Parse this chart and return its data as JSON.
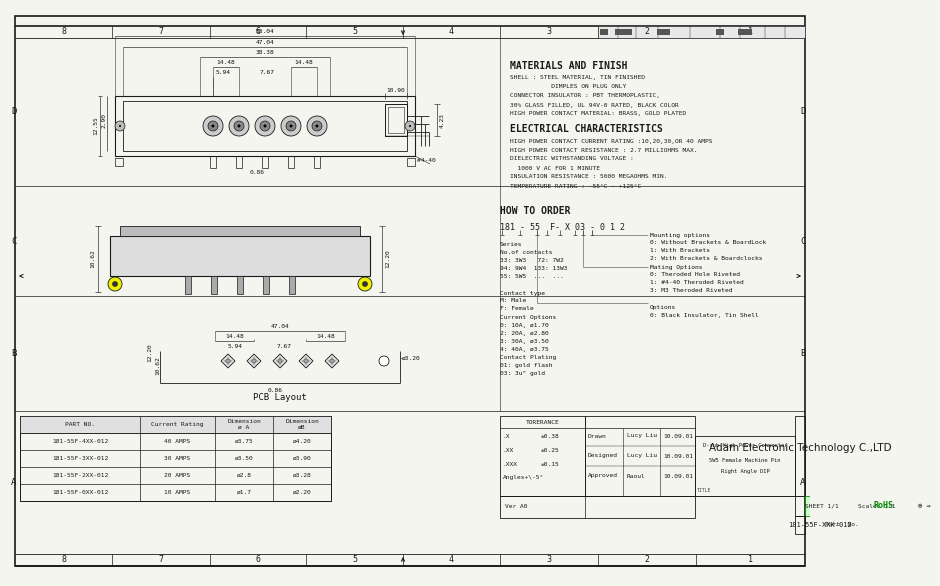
{
  "bg_color": "#f5f5f0",
  "line_color": "#1a1a1a",
  "company": "Adam Electronic Technology C.,LTD",
  "part_no": "181-55F-XXX-012",
  "rohs_color": "#008800",
  "materials_title": "MATERIALS AND FINISH",
  "materials_lines": [
    "SHELL : STEEL MATERIAL, TIN FINISHED",
    "           DIMPLES ON PLUG ONLY",
    "CONNECTOR INSULATOR : PBT THERMOPLASTIC,",
    "30% GLASS FILLED, UL 94V-0 RATED, BLACK COLOR",
    "HIGH POWER CONTACT MATERIAL: BRASS, GOLD PLATED"
  ],
  "electrical_title": "ELECTRICAL CHARACTERISTICS",
  "electrical_lines": [
    "HIGH POWER CONTACT CURRENT RATING :10,20,30,OR 40 AMPS",
    "HIGH POWER CONTACT RESISTANCE : 2.7 MILLIOHMS MAX.",
    "DIELECTRIC WITHSTANDING VOLTAGE :",
    "  1000 V AC FOR 1 MINUTE",
    "INSULATION RESISTANCE : 5000 MEGAOHMS MIN.",
    "TEMPERATURE RATING : -55°C ~ +125°C"
  ],
  "how_to_order": "HOW TO ORDER",
  "order_code": "181 - 55  F- X 03 - 0 1 2",
  "left_order_lines": [
    "Series",
    "No.of contacts",
    "33: 3W3   72: 7W2",
    "94: 9W4  133: 13W3",
    "55: 5W5  ...  ...",
    "",
    "Contact type",
    "M: Male",
    "F: Female",
    "Current Options",
    "0: 10A, ø1.70",
    "2: 20A, ø2.80",
    "3: 30A, ø3.50",
    "4: 40A, ø3.75",
    "Contact Plating",
    "01: gold flash",
    "03: 3u\" gold"
  ],
  "right_order_lines": [
    "Mounting options",
    "0: Without Brackets & BoardLock",
    "1: With Brackets",
    "2: With Brackets & Boardclocks",
    "Mating Options",
    "0: Theroded Hole Riveted",
    "1: #4-40 Theroded Riveted",
    "3: M3 Theroded Riveted",
    "",
    "Options",
    "0: Black Insulator, Tin Shell"
  ],
  "grid_numbers": [
    "8",
    "7",
    "6",
    "5",
    "4",
    "3",
    "2",
    "1"
  ],
  "grid_letters": [
    "D",
    "C",
    "B",
    "A"
  ],
  "tolerance_rows": [
    [
      ".X",
      "±0.38"
    ],
    [
      ".XX",
      "±0.25"
    ],
    [
      ".XXX",
      "±0.15"
    ],
    [
      "Angles+\\-5°",
      ""
    ]
  ],
  "drawn_rows": [
    [
      "Drawn",
      "Lucy Liu",
      "10.09.01"
    ],
    [
      "Designed",
      "Lucy Liu",
      "10.09.01"
    ],
    [
      "Approved",
      "Raoul",
      "10.09.01"
    ]
  ],
  "parts_headers": [
    "PART NO.",
    "Current Rating",
    "Dimension\nø A",
    "Dimension\nøB"
  ],
  "parts_rows": [
    [
      "181-55F-4XX-012",
      "40 AMPS",
      "ø3.75",
      "ø4.20"
    ],
    [
      "181-55F-3XX-012",
      "30 AMPS",
      "ø3.50",
      "ø3.90"
    ],
    [
      "181-55F-2XX-012",
      "20 AMPS",
      "ø2.8",
      "ø3.28"
    ],
    [
      "181-55F-0XX-012",
      "10 AMPS",
      "ø1.7",
      "ø2.20"
    ]
  ]
}
